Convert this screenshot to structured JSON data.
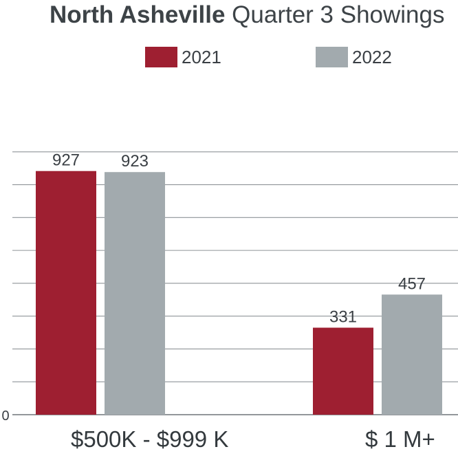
{
  "chart_data": {
    "type": "bar",
    "title_bold": "North Asheville",
    "title_rest": " Quarter 3 Showings",
    "categories": [
      "$500K - $999 K",
      "$ 1 M+"
    ],
    "series": [
      {
        "name": "2021",
        "color": "#9e1f31",
        "values": [
          927,
          331
        ]
      },
      {
        "name": "2022",
        "color": "#a2aaae",
        "values": [
          923,
          457
        ]
      }
    ],
    "y_tick_labels": [
      "0"
    ],
    "ylim": [
      0,
      1250
    ],
    "gridline_values": [
      0,
      125,
      250,
      375,
      500,
      625,
      750,
      875,
      1000
    ],
    "grid": true,
    "legend_position": "top-center"
  }
}
